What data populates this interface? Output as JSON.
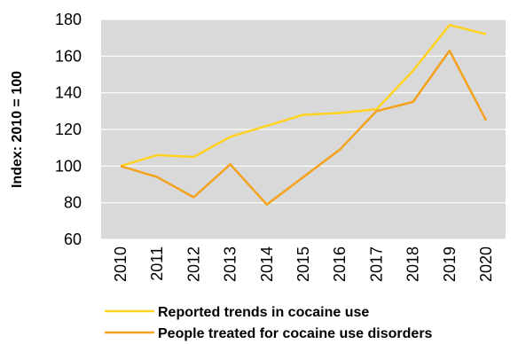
{
  "chart_data": {
    "type": "line",
    "title": "",
    "xlabel": "",
    "ylabel": "Index: 2010 = 100",
    "categories": [
      "2010",
      "2011",
      "2012",
      "2013",
      "2014",
      "2015",
      "2016",
      "2017",
      "2018",
      "2019",
      "2020"
    ],
    "ylim": [
      60,
      180
    ],
    "yticks": [
      60,
      80,
      100,
      120,
      140,
      160,
      180
    ],
    "grid": "horizontal",
    "legend_position": "bottom",
    "series": [
      {
        "name": "Reported trends in cocaine use",
        "color": "#FFD21F",
        "values": [
          100,
          106,
          105,
          116,
          122,
          128,
          129,
          131,
          152,
          177,
          172
        ]
      },
      {
        "name": "People treated for cocaine use disorders",
        "color": "#F4A21C",
        "values": [
          100,
          94,
          83,
          101,
          79,
          94,
          109,
          130,
          135,
          163,
          125
        ]
      }
    ],
    "plot_background": "#D9D9D9",
    "grid_color": "#FFFFFF"
  }
}
